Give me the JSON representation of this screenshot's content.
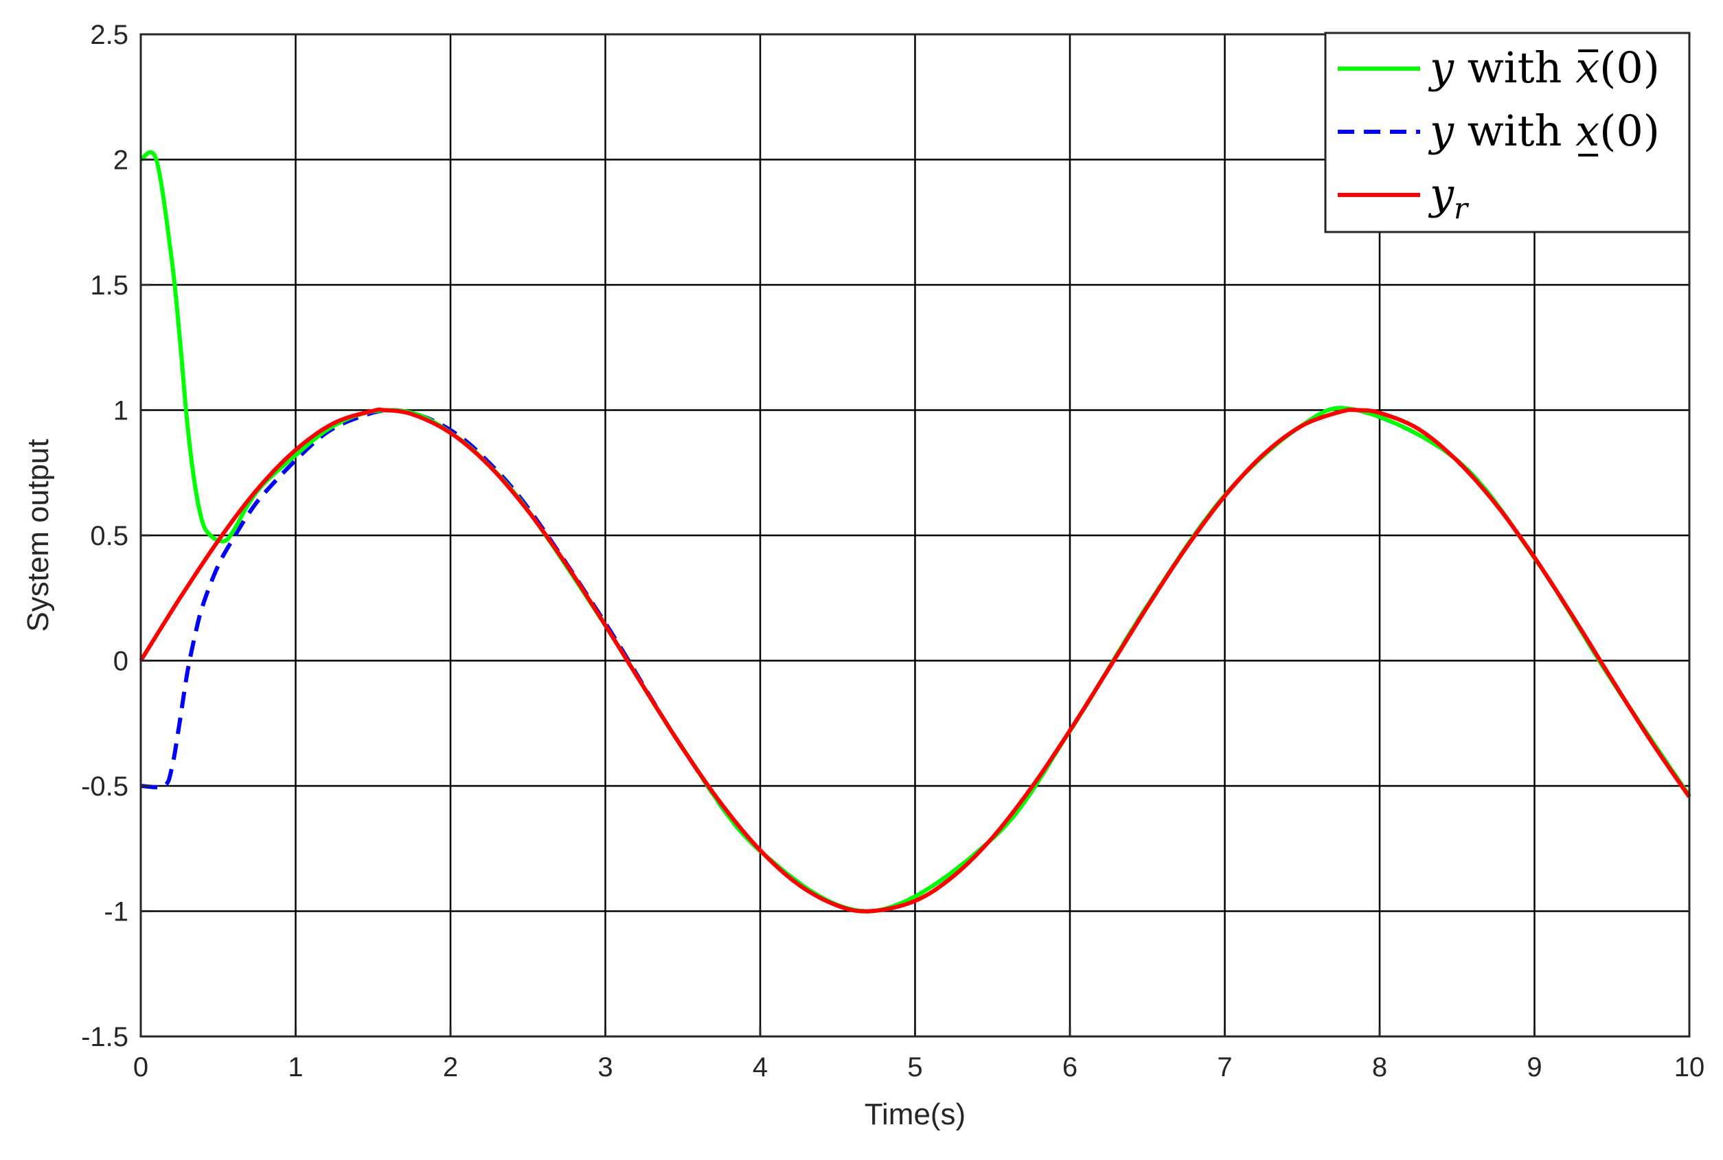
{
  "chart_data": {
    "type": "line",
    "title": "",
    "xlabel": "Time(s)",
    "ylabel": "System output",
    "xlim": [
      0,
      10
    ],
    "ylim": [
      -1.5,
      2.5
    ],
    "xticks": [
      "0",
      "1",
      "2",
      "3",
      "4",
      "5",
      "6",
      "7",
      "8",
      "9",
      "10"
    ],
    "yticks": [
      "-1.5",
      "-1",
      "-0.5",
      "0",
      "0.5",
      "1",
      "1.5",
      "2",
      "2.5"
    ],
    "grid": true,
    "legend_position": "top-right",
    "colors": {
      "green": "#00ff00",
      "blue": "#0000ff",
      "red": "#ff0000",
      "grid": "#000000"
    },
    "series": [
      {
        "name": "y with x̄(0)",
        "legend": {
          "var": "y",
          "word": " with ",
          "state": "x",
          "accent": "bar",
          "arg": "(0)"
        },
        "color": "#00ff00",
        "dash": "solid",
        "x": [
          0,
          0.1,
          0.2,
          0.25,
          0.3,
          0.35,
          0.4,
          0.45,
          0.5,
          0.55,
          0.6,
          0.7,
          0.8,
          1.0,
          1.2,
          1.4,
          1.6,
          1.8,
          2.0,
          2.2,
          2.5,
          3.0,
          3.5,
          4.0,
          4.712,
          5.5,
          6.0,
          6.5,
          7.0,
          7.5,
          7.854,
          8.5,
          9.0,
          9.5,
          10.0
        ],
        "y": [
          2.0,
          2.0,
          1.6,
          1.3,
          0.95,
          0.7,
          0.55,
          0.5,
          0.48,
          0.48,
          0.52,
          0.63,
          0.71,
          0.82,
          0.92,
          0.98,
          1.0,
          0.98,
          0.91,
          0.81,
          0.6,
          0.14,
          -0.35,
          -0.76,
          -1.0,
          -0.71,
          -0.28,
          0.22,
          0.66,
          0.94,
          1.0,
          0.8,
          0.41,
          -0.08,
          -0.54
        ]
      },
      {
        "name": "y with x̲(0)",
        "legend": {
          "var": "y",
          "word": " with ",
          "state": "x",
          "accent": "underline",
          "arg": "(0)"
        },
        "color": "#0000ff",
        "dash": "dashed",
        "x": [
          0,
          0.15,
          0.2,
          0.25,
          0.3,
          0.35,
          0.4,
          0.5,
          0.6,
          0.7,
          0.8,
          1.0,
          1.2,
          1.4,
          1.6,
          1.8,
          2.0,
          2.2,
          2.5,
          3.0,
          3.5,
          4.0,
          4.712,
          5.5,
          6.0,
          6.5,
          7.0,
          7.5,
          7.854,
          8.5,
          9.0,
          9.5,
          10.0
        ],
        "y": [
          -0.5,
          -0.5,
          -0.43,
          -0.25,
          -0.05,
          0.1,
          0.22,
          0.38,
          0.49,
          0.59,
          0.67,
          0.8,
          0.91,
          0.97,
          1.0,
          0.98,
          0.92,
          0.82,
          0.61,
          0.15,
          -0.35,
          -0.76,
          -1.0,
          -0.71,
          -0.28,
          0.22,
          0.66,
          0.94,
          1.0,
          0.8,
          0.41,
          -0.08,
          -0.54
        ]
      },
      {
        "name": "y_r",
        "legend": {
          "var": "y",
          "sub": "r"
        },
        "color": "#ff0000",
        "dash": "solid",
        "x": [
          0,
          0.25,
          0.5,
          0.75,
          1.0,
          1.25,
          1.5,
          1.571,
          1.75,
          2.0,
          2.25,
          2.5,
          2.75,
          3.0,
          3.25,
          3.5,
          3.75,
          4.0,
          4.25,
          4.5,
          4.712,
          5.0,
          5.25,
          5.5,
          5.75,
          6.0,
          6.25,
          6.5,
          6.75,
          7.0,
          7.25,
          7.5,
          7.75,
          7.854,
          8.0,
          8.25,
          8.5,
          8.75,
          9.0,
          9.25,
          9.5,
          9.75,
          10.0
        ],
        "y": [
          0.0,
          0.247,
          0.479,
          0.682,
          0.841,
          0.949,
          0.997,
          1.0,
          0.984,
          0.909,
          0.778,
          0.598,
          0.382,
          0.141,
          -0.108,
          -0.351,
          -0.572,
          -0.757,
          -0.895,
          -0.978,
          -1.0,
          -0.959,
          -0.859,
          -0.706,
          -0.508,
          -0.279,
          -0.033,
          0.215,
          0.45,
          0.657,
          0.823,
          0.938,
          0.994,
          1.0,
          0.989,
          0.925,
          0.798,
          0.625,
          0.412,
          0.174,
          -0.075,
          -0.319,
          -0.544
        ]
      }
    ]
  }
}
